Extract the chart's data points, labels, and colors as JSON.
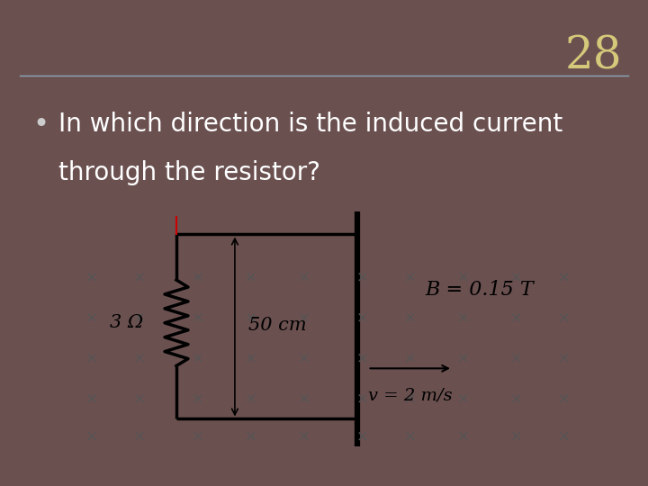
{
  "bg_color": "#6b5050",
  "number": "28",
  "number_color": "#d4c97a",
  "number_fontsize": 36,
  "line_color": "#8aaabb",
  "question_text_line1": "In which direction is the induced current",
  "question_text_line2": "through the resistor?",
  "question_color": "#ffffff",
  "question_fontsize": 20,
  "bullet_color": "#cccccc",
  "diagram_bg": "#ffffff",
  "cross_color": "#555555",
  "circuit_color": "#000000",
  "rod_color": "#000000",
  "label_50cm": "50 cm",
  "label_B": "B = 0.15 T",
  "label_v": "v = 2 m/s",
  "label_R": "3 Ω",
  "label_color": "#000000",
  "red_line_color": "#cc0000"
}
